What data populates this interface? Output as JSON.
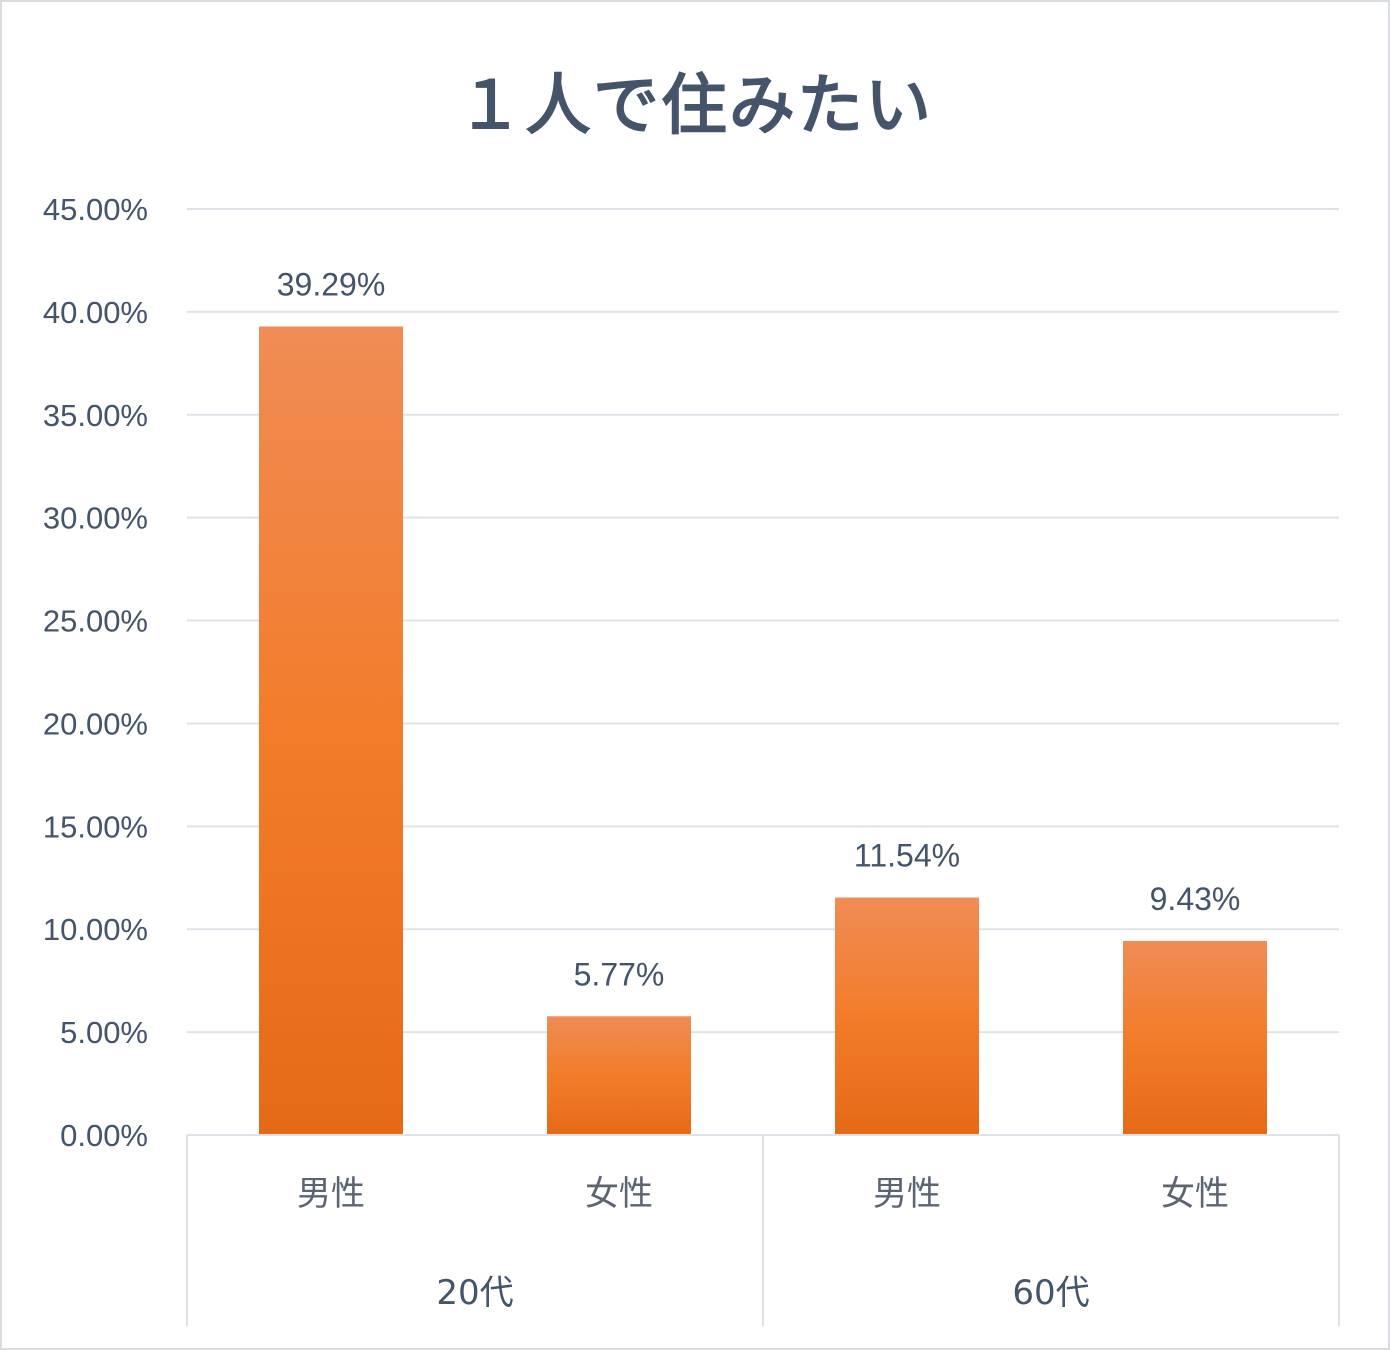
{
  "chart_data": {
    "type": "bar",
    "title": "１人で住みたい",
    "xlabel": "",
    "ylabel": "",
    "ylim": [
      0,
      45
    ],
    "y_ticks": [
      "0.00%",
      "5.00%",
      "10.00%",
      "15.00%",
      "20.00%",
      "25.00%",
      "30.00%",
      "35.00%",
      "40.00%",
      "45.00%"
    ],
    "categories": [
      "男性",
      "女性",
      "男性",
      "女性"
    ],
    "groups": [
      {
        "label": "20代",
        "categories": [
          "男性",
          "女性"
        ]
      },
      {
        "label": "60代",
        "categories": [
          "男性",
          "女性"
        ]
      }
    ],
    "values": [
      39.29,
      5.77,
      11.54,
      9.43
    ],
    "value_labels": [
      "39.29%",
      "5.77%",
      "11.54%",
      "9.43%"
    ],
    "grid": true,
    "legend": "none",
    "colors": {
      "bar_top": "#f08c55",
      "bar_mid": "#f27c2a",
      "bar_bottom": "#e56a18",
      "grid": "#dde2e8",
      "text": "#44546a"
    }
  }
}
